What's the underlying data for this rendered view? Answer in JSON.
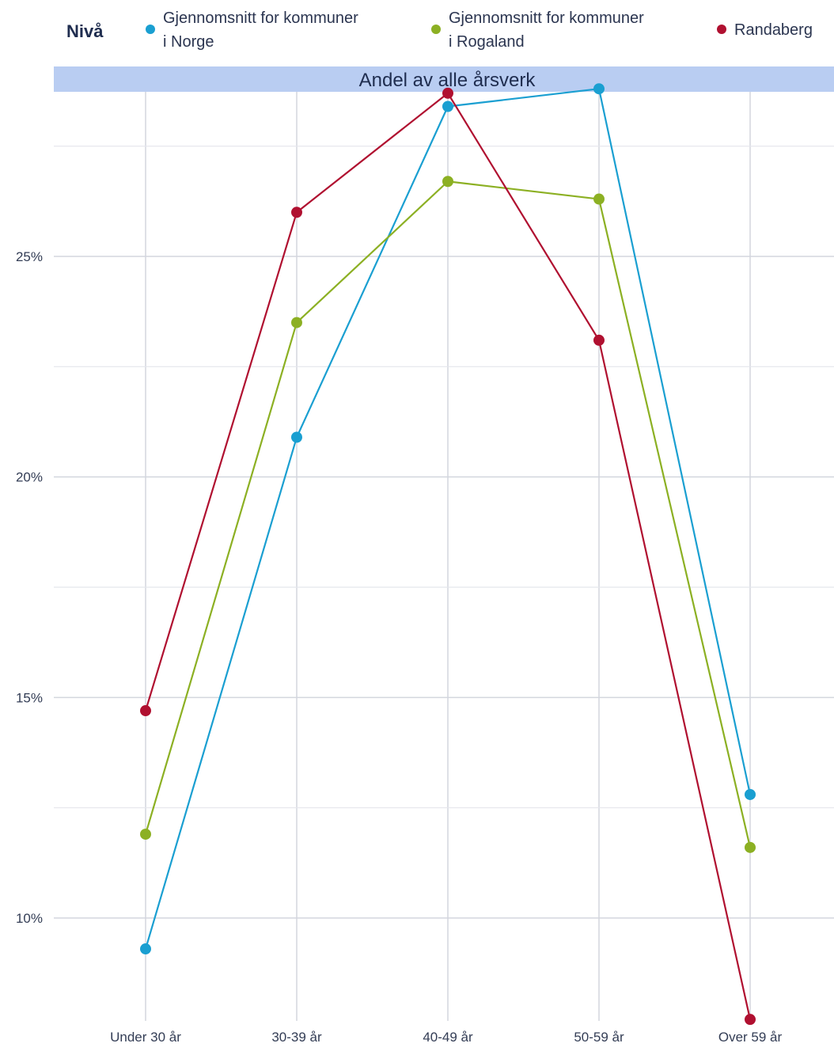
{
  "legend": {
    "title": "Nivå",
    "entries": [
      {
        "key": "norge",
        "lines": [
          "Gjennomsnitt for kommuner",
          "i Norge"
        ],
        "color": "#1a9fd1"
      },
      {
        "key": "rogaland",
        "lines": [
          "Gjennomsnitt for kommuner",
          "i Rogaland"
        ],
        "color": "#8cb023"
      },
      {
        "key": "randaberg",
        "lines": [
          "Randaberg"
        ],
        "color": "#b01030"
      }
    ]
  },
  "chart_data": {
    "type": "line",
    "title": "",
    "facet_label": "Andel av alle årsverk",
    "xlabel": "",
    "ylabel": "",
    "categories": [
      "Under 30 år",
      "30-39 år",
      "40-49 år",
      "50-59 år",
      "Over 59 år"
    ],
    "y_ticks": [
      {
        "value": 10,
        "label": "10%"
      },
      {
        "value": 15,
        "label": "15%"
      },
      {
        "value": 20,
        "label": "20%"
      },
      {
        "value": 25,
        "label": "25%"
      }
    ],
    "y_minor_ticks": [
      12.5,
      17.5,
      22.5,
      27.5
    ],
    "ylim": [
      7.7,
      28.8
    ],
    "grid": true,
    "legend_position": "top",
    "series": [
      {
        "name": "Gjennomsnitt for kommuner i Norge",
        "color": "#1a9fd1",
        "values": [
          9.3,
          20.9,
          28.4,
          28.8,
          12.8
        ]
      },
      {
        "name": "Gjennomsnitt for kommuner i Rogaland",
        "color": "#8cb023",
        "values": [
          11.9,
          23.5,
          26.7,
          26.3,
          11.6
        ]
      },
      {
        "name": "Randaberg",
        "color": "#b01030",
        "values": [
          14.7,
          26.0,
          28.7,
          23.1,
          7.7
        ]
      }
    ]
  }
}
